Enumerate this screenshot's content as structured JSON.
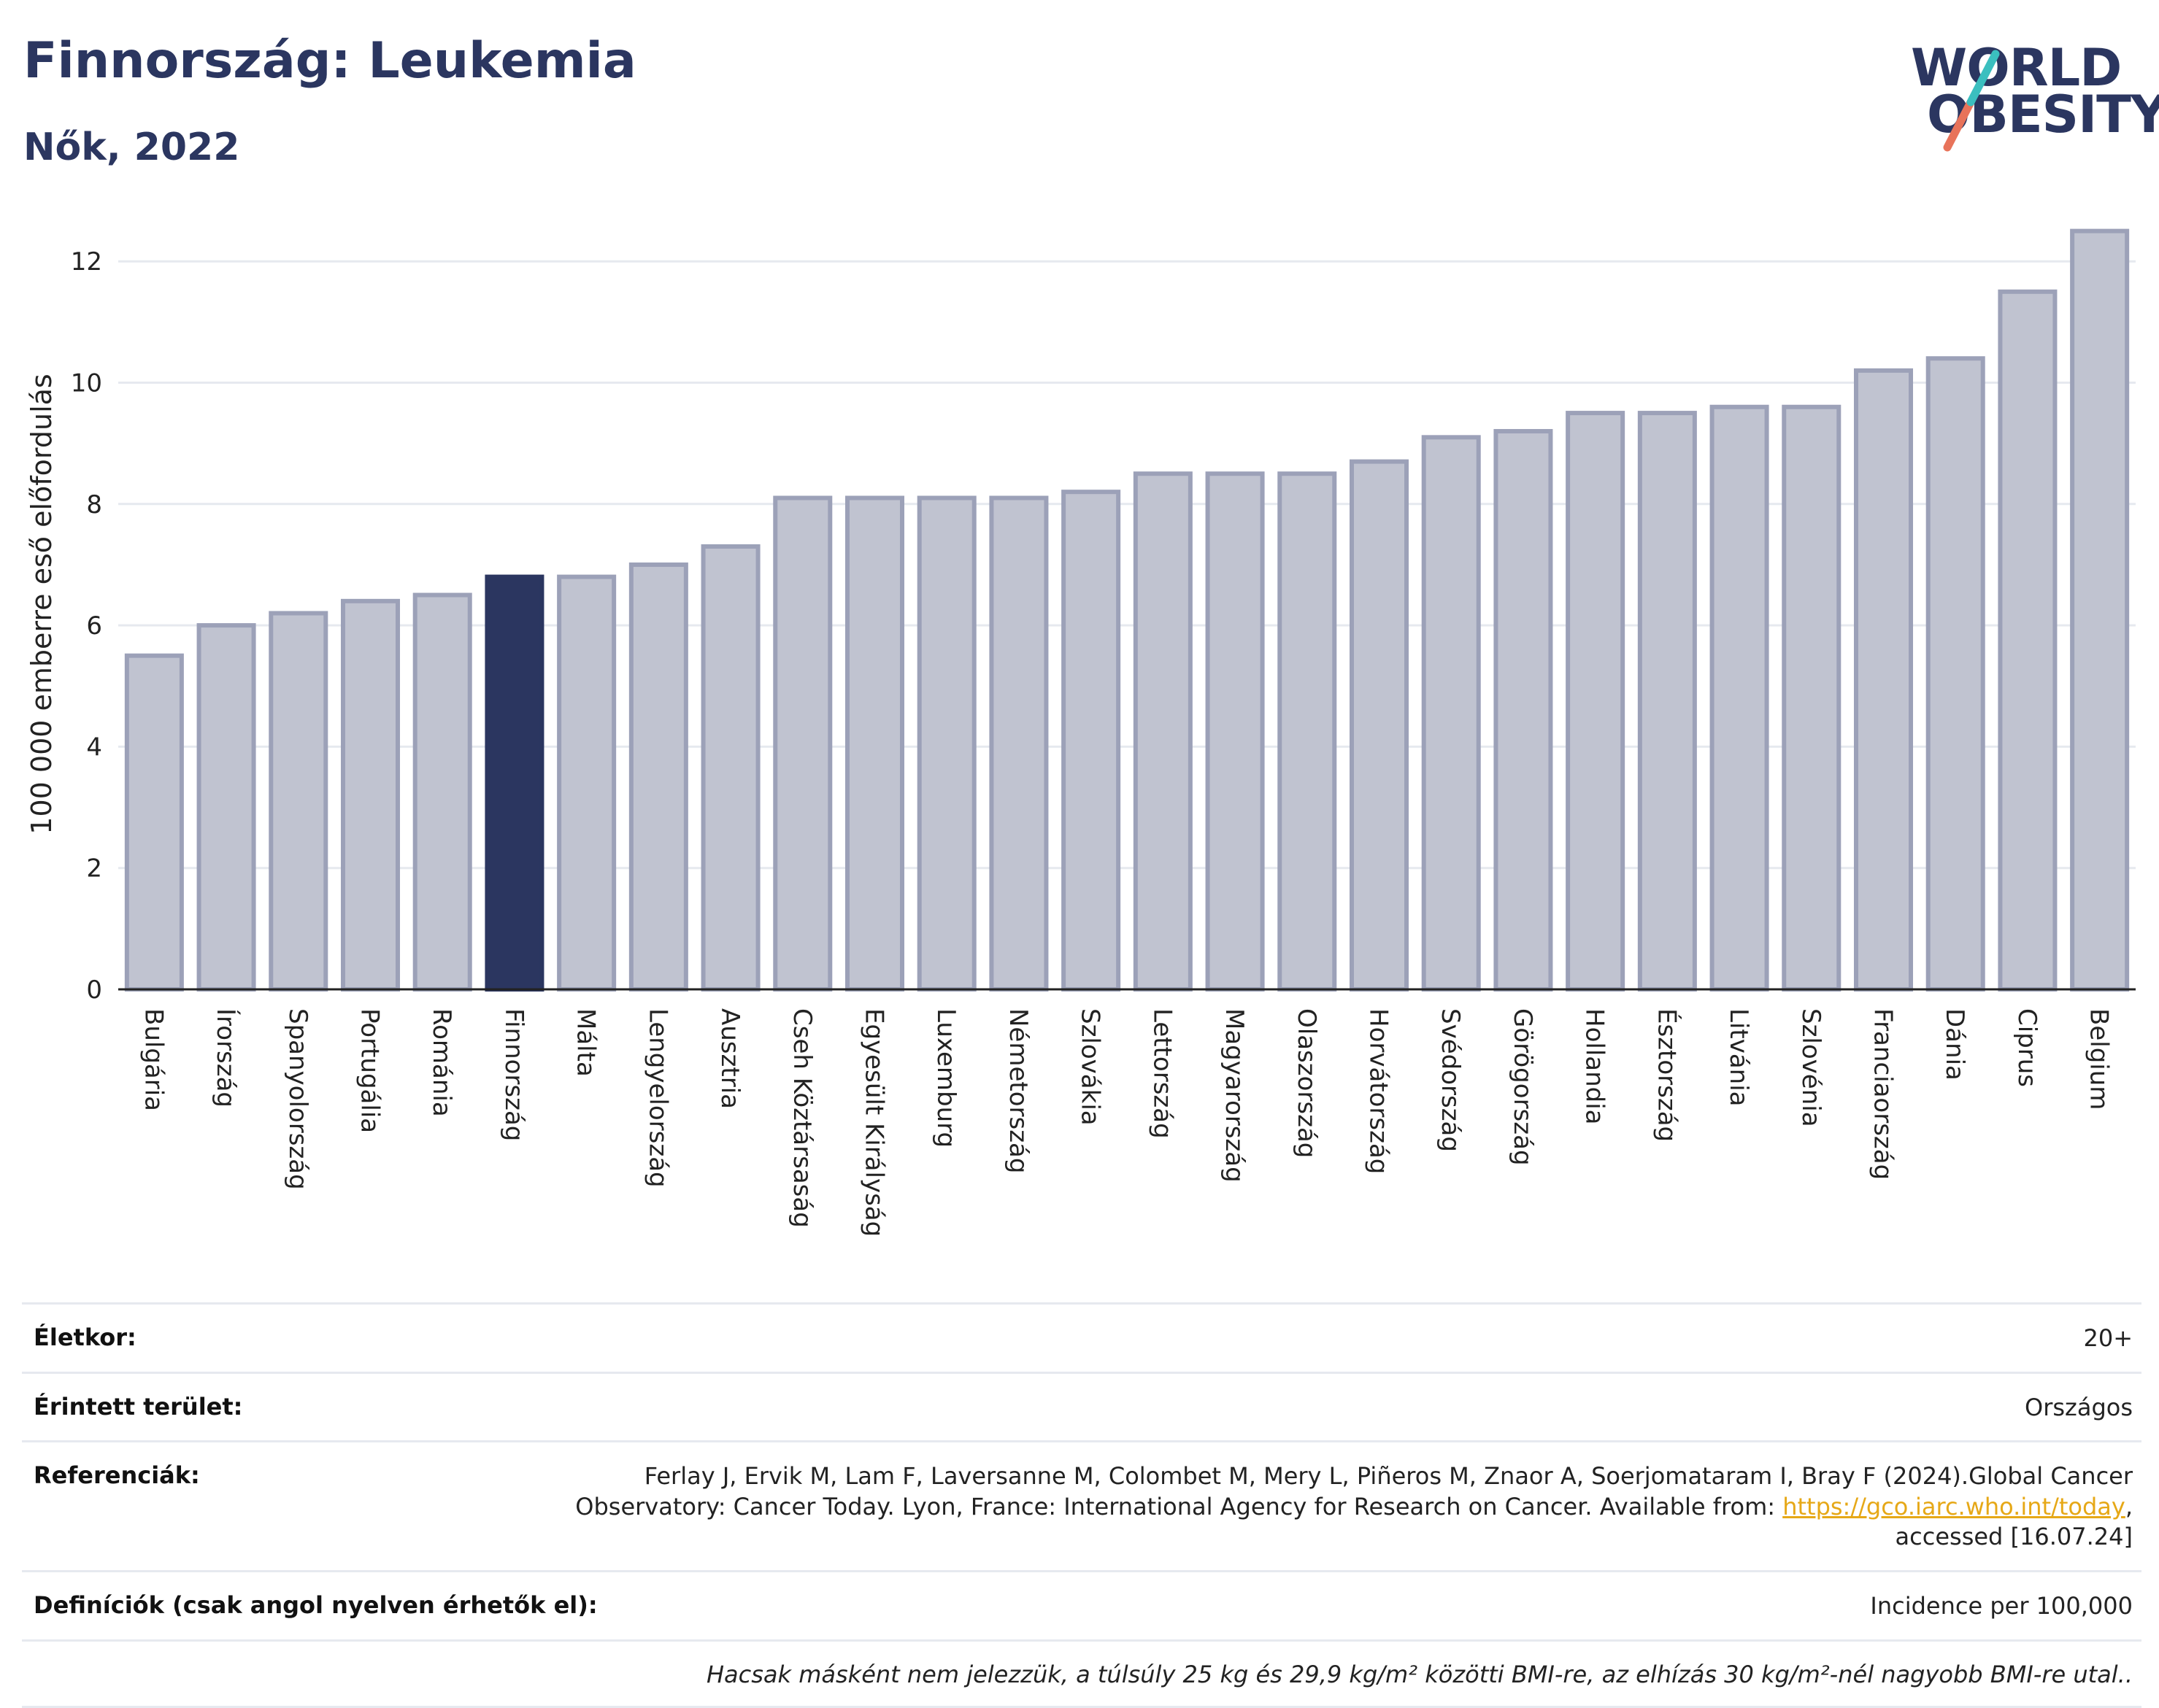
{
  "header": {
    "title": "Finnország: Leukemia",
    "subtitle": "Nők, 2022"
  },
  "logo": {
    "line1": "WORLD",
    "line2": "OBESITY",
    "colors": {
      "text": "#2b3660",
      "slash_top": "#3bbfbf",
      "slash_bottom": "#e8735a"
    }
  },
  "chart_data": {
    "type": "bar",
    "ylabel": "100 000 emberre eső előfordulás",
    "xlabel": "",
    "ylim": [
      0,
      12.7
    ],
    "yticks": [
      0,
      2,
      4,
      6,
      8,
      10,
      12
    ],
    "grid": true,
    "highlight_category": "Finnország",
    "colors": {
      "bar": "#c0c3d0",
      "bar_border": "#9ca1b8",
      "highlight": "#2b3660",
      "grid": "#e6e9ef",
      "axis": "#222222"
    },
    "categories": [
      "Bulgária",
      "Írország",
      "Spanyolország",
      "Portugália",
      "Románia",
      "Finnország",
      "Málta",
      "Lengyelország",
      "Ausztria",
      "Cseh Köztársaság",
      "Egyesült Királyság",
      "Luxemburg",
      "Németország",
      "Szlovákia",
      "Lettország",
      "Magyarország",
      "Olaszország",
      "Horvátország",
      "Svédország",
      "Görögország",
      "Hollandia",
      "Észtország",
      "Litvánia",
      "Szlovénia",
      "Franciaország",
      "Dánia",
      "Ciprus",
      "Belgium"
    ],
    "values": [
      5.5,
      6.0,
      6.2,
      6.4,
      6.5,
      6.8,
      6.8,
      7.0,
      7.3,
      8.1,
      8.1,
      8.1,
      8.1,
      8.2,
      8.5,
      8.5,
      8.5,
      8.7,
      9.1,
      9.2,
      9.5,
      9.5,
      9.6,
      9.6,
      10.2,
      10.4,
      11.5,
      12.5
    ]
  },
  "meta": {
    "rows": [
      {
        "label": "Életkor:",
        "value": "20+"
      },
      {
        "label": "Érintett terület:",
        "value": "Országos"
      },
      {
        "label": "Referenciák:",
        "value_part1": "Ferlay J, Ervik M, Lam F, Laversanne M, Colombet M, Mery L, Piñeros M, Znaor A, Soerjomataram I, Bray F (2024).Global Cancer Observatory: Cancer Today. Lyon, France: International Agency for Research on Cancer. Available from: ",
        "link": "https://gco.iarc.who.int/today",
        "value_part2": ", accessed [16.07.24]"
      },
      {
        "label": "Definíciók (csak angol nyelven érhetők el):",
        "value": "Incidence per 100,000"
      }
    ],
    "note": "Hacsak másként nem jelezzük, a túlsúly 25 kg és 29,9 kg/m² közötti BMI-re, az elhízás 30 kg/m²-nél nagyobb BMI-re utal.."
  }
}
